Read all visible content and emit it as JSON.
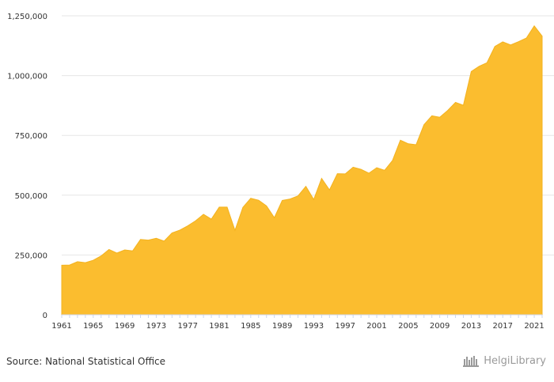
{
  "chart_data": {
    "type": "area",
    "title": "",
    "xlabel": "",
    "ylabel": "",
    "ylim": [
      0,
      1250000
    ],
    "yticks": [
      0,
      250000,
      500000,
      750000,
      1000000,
      1250000
    ],
    "ytick_labels": [
      "0",
      "250,000",
      "500,000",
      "750,000",
      "1,000,000",
      "1,250,000"
    ],
    "xtick_labels": [
      "1961",
      "1965",
      "1969",
      "1973",
      "1977",
      "1981",
      "1985",
      "1989",
      "1993",
      "1997",
      "2001",
      "2005",
      "2009",
      "2013",
      "2017",
      "2021"
    ],
    "grid": true,
    "color": "#fbbd2f",
    "series": [
      {
        "x": [
          1961,
          1962,
          1963,
          1964,
          1965,
          1966,
          1967,
          1968,
          1969,
          1970,
          1971,
          1972,
          1973,
          1974,
          1975,
          1976,
          1977,
          1978,
          1979,
          1980,
          1981,
          1982,
          1983,
          1984,
          1985,
          1986,
          1987,
          1988,
          1989,
          1990,
          1991,
          1992,
          1993,
          1994,
          1995,
          1996,
          1997,
          1998,
          1999,
          2000,
          2001,
          2002,
          2003,
          2004,
          2005,
          2006,
          2007,
          2008,
          2009,
          2010,
          2011,
          2012,
          2013,
          2014,
          2015,
          2016,
          2017,
          2018,
          2019,
          2020,
          2021,
          2022
        ],
        "values": [
          207000,
          208000,
          222000,
          218000,
          228000,
          246000,
          273000,
          258000,
          271000,
          267000,
          315000,
          312000,
          320000,
          308000,
          342000,
          354000,
          372000,
          393000,
          420000,
          400000,
          450000,
          450000,
          353000,
          449000,
          487000,
          479000,
          455000,
          406000,
          478000,
          484000,
          497000,
          537000,
          482000,
          570000,
          522000,
          590000,
          589000,
          617000,
          608000,
          592000,
          615000,
          604000,
          645000,
          730000,
          715000,
          711000,
          795000,
          832000,
          826000,
          854000,
          888000,
          876000,
          1017000,
          1039000,
          1054000,
          1122000,
          1141000,
          1128000,
          1142000,
          1157000,
          1208000,
          1165000
        ]
      }
    ]
  },
  "footer": {
    "source": "Source: National Statistical Office",
    "brand": "HelgiLibrary"
  }
}
